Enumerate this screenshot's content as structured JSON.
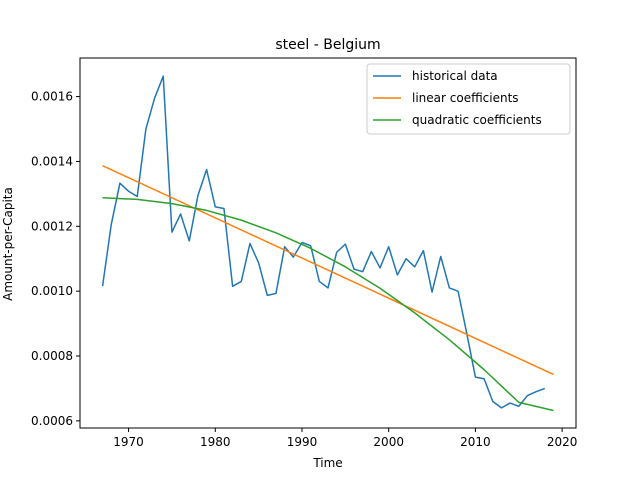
{
  "chart_data": {
    "type": "line",
    "title": "steel - Belgium",
    "xlabel": "Time",
    "ylabel": "Amount-per-Capita",
    "xlim": [
      1964.4,
      2021.6
    ],
    "ylim": [
      0.000578,
      0.001719
    ],
    "xticks": [
      1970,
      1980,
      1990,
      2000,
      2010,
      2020
    ],
    "yticks": [
      0.0006,
      0.0008,
      0.001,
      0.0012,
      0.0014,
      0.0016
    ],
    "ytick_labels": [
      "0.0006",
      "0.0008",
      "0.0010",
      "0.0012",
      "0.0014",
      "0.0016"
    ],
    "legend_position": "upper right",
    "grid": false,
    "series": [
      {
        "name": "historical data",
        "color": "#1f77b4",
        "x": [
          1967,
          1968,
          1969,
          1970,
          1971,
          1972,
          1973,
          1974,
          1975,
          1976,
          1977,
          1978,
          1979,
          1980,
          1981,
          1982,
          1983,
          1984,
          1985,
          1986,
          1987,
          1988,
          1989,
          1990,
          1991,
          1992,
          1993,
          1994,
          1995,
          1996,
          1997,
          1998,
          1999,
          2000,
          2001,
          2002,
          2003,
          2004,
          2005,
          2006,
          2007,
          2008,
          2009,
          2010,
          2011,
          2012,
          2013,
          2014,
          2015,
          2016,
          2017,
          2018
        ],
        "y": [
          0.001015,
          0.001205,
          0.001333,
          0.001308,
          0.001292,
          0.0015,
          0.001595,
          0.001663,
          0.001182,
          0.001238,
          0.001155,
          0.001295,
          0.001375,
          0.00126,
          0.001255,
          0.001015,
          0.00103,
          0.001147,
          0.001087,
          0.000987,
          0.000993,
          0.001137,
          0.001105,
          0.00115,
          0.00114,
          0.00103,
          0.00101,
          0.00112,
          0.001145,
          0.001068,
          0.00106,
          0.001122,
          0.001072,
          0.001137,
          0.00105,
          0.0011,
          0.001075,
          0.001125,
          0.000997,
          0.001107,
          0.00101,
          0.001,
          0.00087,
          0.000735,
          0.00073,
          0.00066,
          0.00064,
          0.000655,
          0.000645,
          0.000678,
          0.00069,
          0.0007
        ]
      },
      {
        "name": "linear coefficients",
        "color": "#ff7f0e",
        "x": [
          1967,
          2019
        ],
        "y": [
          0.001387,
          0.000743
        ]
      },
      {
        "name": "quadratic coefficients",
        "color": "#2ca02c",
        "x": [
          1967,
          1971,
          1975,
          1979,
          1983,
          1987,
          1991,
          1995,
          1999,
          2003,
          2007,
          2011,
          2015,
          2019
        ],
        "y": [
          0.001288,
          0.001283,
          0.00127,
          0.001249,
          0.001219,
          0.00118,
          0.001132,
          0.001075,
          0.001009,
          0.000933,
          0.00085,
          0.000758,
          0.000657,
          0.000632
        ]
      }
    ]
  }
}
